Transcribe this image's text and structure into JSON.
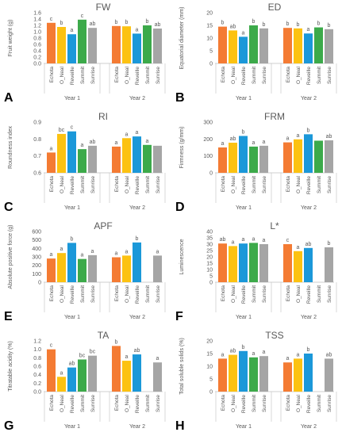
{
  "figure": {
    "colors": {
      "Echota": "#f47b33",
      "O_Neal": "#fcc211",
      "Reveille": "#1b98d9",
      "Summit": "#3caa4a",
      "Sunrise": "#a5a5a5",
      "axis": "#bfbfbf",
      "text": "#595959"
    }
  },
  "chart_data": [
    {
      "panel": "A",
      "type": "bar",
      "title": "FW",
      "ylabel": "Fruit weight (g)",
      "ylim": [
        0,
        1.6
      ],
      "yticks": [
        0.0,
        0.2,
        0.4,
        0.6,
        0.8,
        1.0,
        1.2,
        1.4,
        1.6
      ],
      "tick_decimals": 1,
      "groups": [
        "Year 1",
        "Year 2"
      ],
      "categories": [
        "Echota",
        "O_Neal",
        "Reveille",
        "Summit",
        "Sunrise"
      ],
      "series": [
        {
          "group": "Year 1",
          "values": [
            1.28,
            1.15,
            0.92,
            1.38,
            1.12
          ],
          "labels": [
            "c",
            "b",
            "a",
            "c",
            "ab"
          ]
        },
        {
          "group": "Year 2",
          "values": [
            1.18,
            1.17,
            0.94,
            1.2,
            1.1
          ],
          "labels": [
            "b",
            "b",
            "a",
            "b",
            "ab"
          ]
        }
      ]
    },
    {
      "panel": "B",
      "type": "bar",
      "title": "ED",
      "ylabel": "Equatorial diameter (mm)",
      "ylim": [
        0,
        20
      ],
      "yticks": [
        0,
        5,
        10,
        15,
        20
      ],
      "tick_decimals": 0,
      "groups": [
        "Year 1",
        "Year 2"
      ],
      "categories": [
        "Echota",
        "O_Neal",
        "Reveille",
        "Summit",
        "Sunrise"
      ],
      "series": [
        {
          "group": "Year 1",
          "values": [
            14.5,
            13.0,
            10.5,
            15.0,
            13.8
          ],
          "labels": [
            "b",
            "ab",
            "a",
            "b",
            "b"
          ]
        },
        {
          "group": "Year 2",
          "values": [
            14.0,
            13.8,
            11.8,
            14.2,
            13.5
          ],
          "labels": [
            "b",
            "b",
            "a",
            "b",
            "b"
          ]
        }
      ]
    },
    {
      "panel": "C",
      "type": "bar",
      "title": "RI",
      "ylabel": "Roundness index",
      "ylim": [
        0.6,
        0.9
      ],
      "yticks": [
        0.6,
        0.7,
        0.8,
        0.9
      ],
      "tick_decimals": 1,
      "groups": [
        "Year 1",
        "Year 2"
      ],
      "categories": [
        "Echota",
        "O_Neal",
        "Reveille",
        "Summit",
        "Sunrise"
      ],
      "series": [
        {
          "group": "Year 1",
          "values": [
            0.72,
            0.83,
            0.845,
            0.74,
            0.76
          ],
          "labels": [
            "a",
            "bc",
            "c",
            "a",
            "ab"
          ]
        },
        {
          "group": "Year 2",
          "values": [
            0.755,
            0.805,
            0.815,
            0.765,
            0.76
          ],
          "labels": [
            "a",
            "a",
            "a",
            "a",
            ""
          ]
        }
      ]
    },
    {
      "panel": "D",
      "type": "bar",
      "title": "FRM",
      "ylabel": "Firmness (g/mm)",
      "ylim": [
        0,
        300
      ],
      "yticks": [
        0,
        100,
        200,
        300
      ],
      "tick_decimals": 0,
      "groups": [
        "Year 1",
        "Year 2"
      ],
      "categories": [
        "Echota",
        "O_Neal",
        "Reveille",
        "Summit",
        "Sunrise"
      ],
      "series": [
        {
          "group": "Year 1",
          "values": [
            150,
            178,
            218,
            155,
            160
          ],
          "labels": [
            "a",
            "ab",
            "b",
            "a",
            "a"
          ]
        },
        {
          "group": "Year 2",
          "values": [
            180,
            198,
            228,
            190,
            192
          ],
          "labels": [
            "a",
            "a",
            "b",
            "",
            "ab"
          ]
        }
      ]
    },
    {
      "panel": "E",
      "type": "bar",
      "title": "APF",
      "ylabel": "Absolute positive force (g)",
      "ylim": [
        0,
        600
      ],
      "yticks": [
        0,
        100,
        200,
        300,
        400,
        500,
        600
      ],
      "tick_decimals": 0,
      "groups": [
        "Year 1",
        "Year 2"
      ],
      "categories": [
        "Echota",
        "O_Neal",
        "Reveille",
        "Summit",
        "Sunrise"
      ],
      "series": [
        {
          "group": "Year 1",
          "values": [
            280,
            345,
            465,
            275,
            320
          ],
          "labels": [
            "a",
            "a",
            "b",
            "a",
            "a"
          ]
        },
        {
          "group": "Year 2",
          "values": [
            295,
            315,
            470,
            0,
            315
          ],
          "labels": [
            "a",
            "a",
            "b",
            "",
            "a"
          ]
        }
      ]
    },
    {
      "panel": "F",
      "type": "bar",
      "title": "L*",
      "ylabel": "Luminescence",
      "ylim": [
        0,
        40
      ],
      "yticks": [
        0,
        5,
        10,
        15,
        20,
        25,
        30,
        35,
        40
      ],
      "tick_decimals": 0,
      "groups": [
        "Year 1",
        "Year 2"
      ],
      "categories": [
        "Echota",
        "O_Neal",
        "Reveille",
        "Summit",
        "Sunrise"
      ],
      "series": [
        {
          "group": "Year 1",
          "values": [
            30.5,
            28.5,
            30.5,
            31.0,
            30.0
          ],
          "labels": [
            "ab",
            "a",
            "a",
            "a",
            "a"
          ]
        },
        {
          "group": "Year 2",
          "values": [
            30.0,
            24.5,
            27.0,
            0,
            27.5
          ],
          "labels": [
            "c",
            "a",
            "ab",
            "",
            "b"
          ]
        }
      ]
    },
    {
      "panel": "G",
      "type": "bar",
      "title": "TA",
      "ylabel": "Titratable acidity (%)",
      "ylim": [
        0,
        1.2
      ],
      "yticks": [
        0.0,
        0.2,
        0.4,
        0.6,
        0.8,
        1.0,
        1.2
      ],
      "tick_decimals": 1,
      "groups": [
        "Year 1",
        "Year 2"
      ],
      "categories": [
        "Echota",
        "O_Neal",
        "Reveille",
        "Summit",
        "Sunrise"
      ],
      "series": [
        {
          "group": "Year 1",
          "values": [
            1.0,
            0.35,
            0.57,
            0.76,
            0.85
          ],
          "labels": [
            "c",
            "a",
            "ab",
            "bc",
            "bc"
          ]
        },
        {
          "group": "Year 2",
          "values": [
            1.08,
            0.73,
            0.88,
            0,
            0.69
          ],
          "labels": [
            "b",
            "a",
            "ab",
            "",
            "a"
          ]
        }
      ]
    },
    {
      "panel": "H",
      "type": "bar",
      "title": "TSS",
      "ylabel": "Total soluble solids (%)",
      "ylim": [
        0,
        20
      ],
      "yticks": [
        0,
        5,
        10,
        15,
        20
      ],
      "tick_decimals": 0,
      "groups": [
        "Year 1",
        "Year 2"
      ],
      "categories": [
        "Echota",
        "O_Neal",
        "Reveille",
        "Summit",
        "Sunrise"
      ],
      "series": [
        {
          "group": "Year 1",
          "values": [
            13.0,
            14.5,
            16.0,
            13.5,
            14.0
          ],
          "labels": [
            "a",
            "ab",
            "b",
            "a",
            "a"
          ]
        },
        {
          "group": "Year 2",
          "values": [
            11.5,
            13.0,
            15.0,
            0,
            13.0
          ],
          "labels": [
            "a",
            "a",
            "b",
            "",
            "ab"
          ]
        }
      ]
    }
  ]
}
